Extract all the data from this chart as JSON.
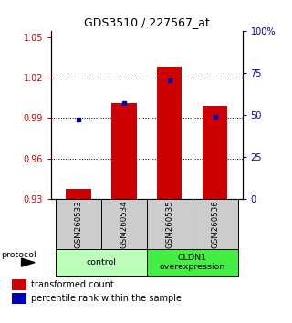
{
  "title": "GDS3510 / 227567_at",
  "samples": [
    "GSM260533",
    "GSM260534",
    "GSM260535",
    "GSM260536"
  ],
  "red_values": [
    0.937,
    1.001,
    1.028,
    0.999
  ],
  "blue_values": [
    0.989,
    1.001,
    1.018,
    0.991
  ],
  "red_baseline": 0.93,
  "ylim_left": [
    0.93,
    1.055
  ],
  "ylim_right": [
    0,
    100
  ],
  "yticks_left": [
    0.93,
    0.96,
    0.99,
    1.02,
    1.05
  ],
  "yticks_right": [
    0,
    25,
    50,
    75,
    100
  ],
  "ytick_labels_left": [
    "0.93",
    "0.96",
    "0.99",
    "1.02",
    "1.05"
  ],
  "ytick_labels_right": [
    "0",
    "25",
    "50",
    "75",
    "100%"
  ],
  "groups": [
    {
      "label": "control",
      "samples": [
        0,
        1
      ],
      "color": "#bbffbb"
    },
    {
      "label": "CLDN1\noverexpression",
      "samples": [
        2,
        3
      ],
      "color": "#44ee44"
    }
  ],
  "protocol_label": "protocol",
  "legend_red": "transformed count",
  "legend_blue": "percentile rank within the sample",
  "red_color": "#cc0000",
  "blue_color": "#0000bb",
  "bar_width": 0.55,
  "gridline_ticks": [
    0.96,
    0.99,
    1.02
  ],
  "sample_box_color": "#cccccc",
  "title_fontsize": 9,
  "tick_fontsize": 7,
  "legend_fontsize": 7
}
